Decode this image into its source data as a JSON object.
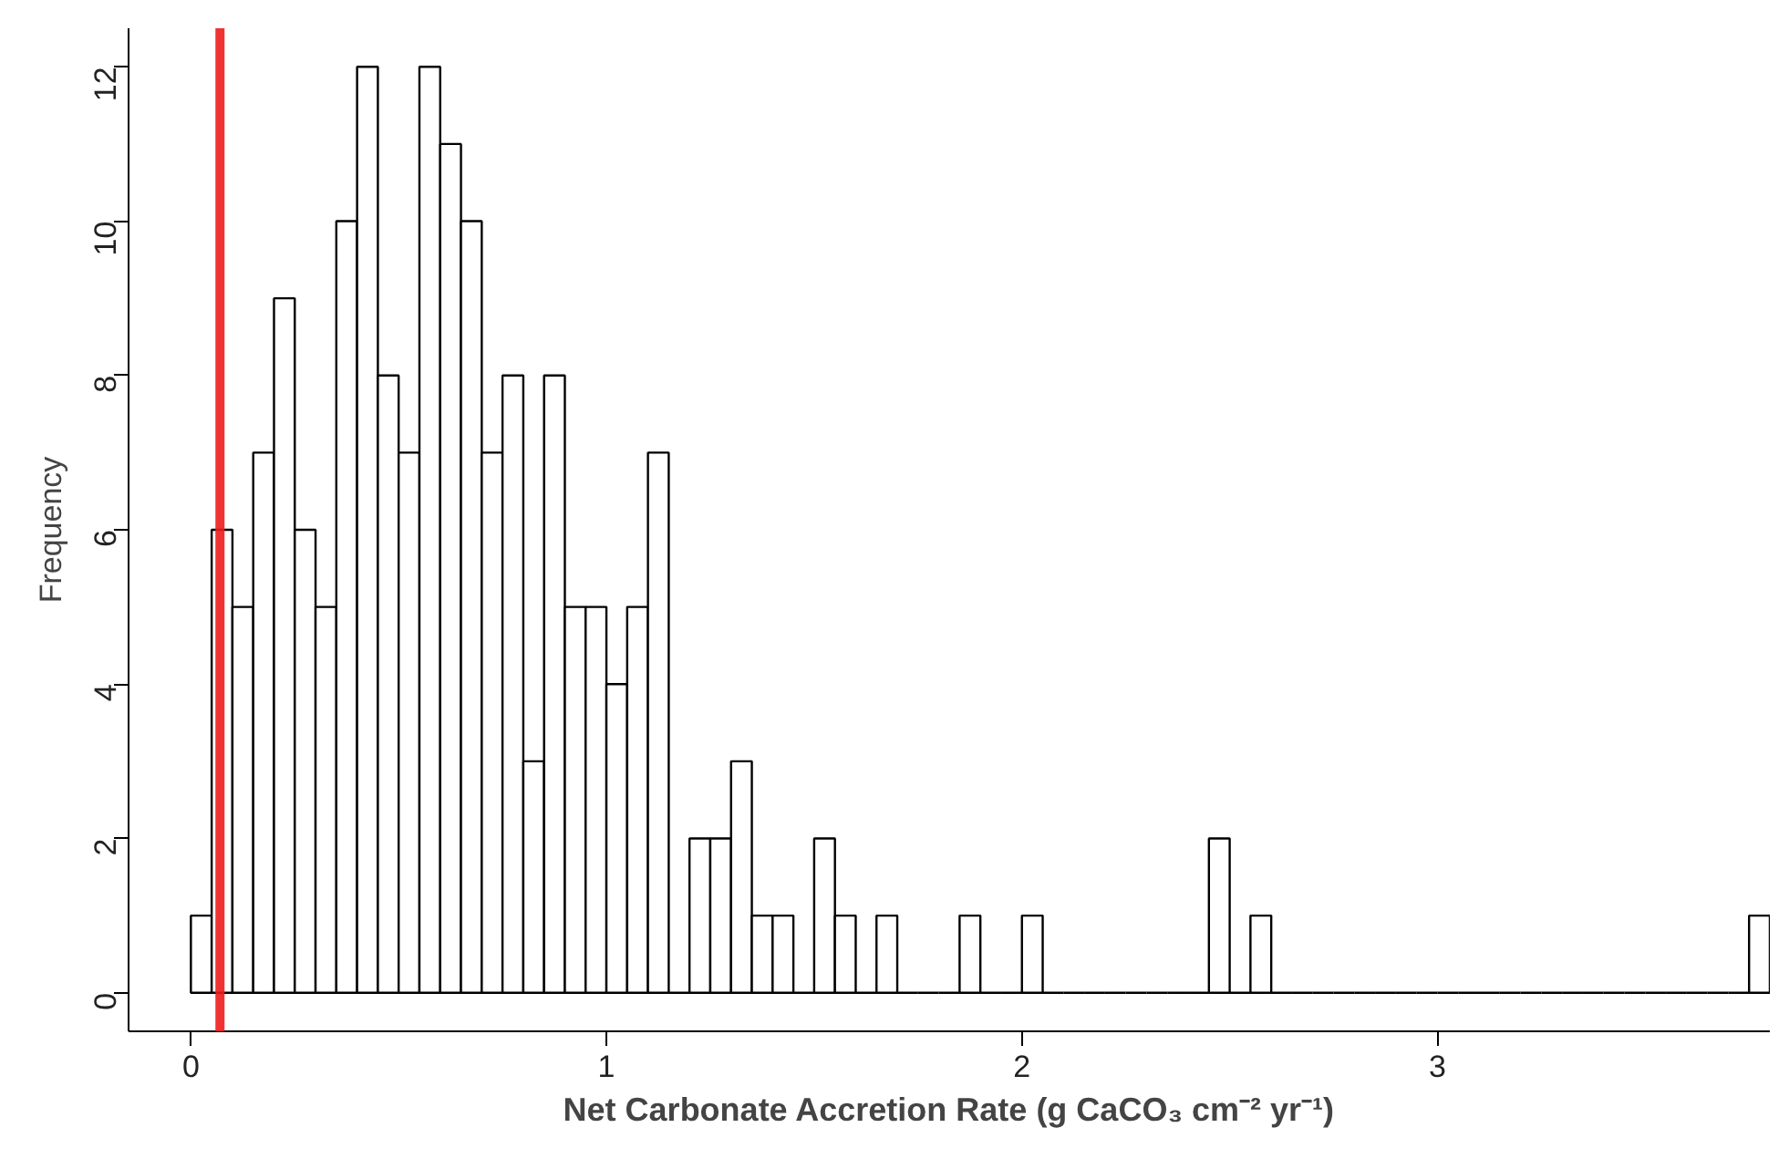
{
  "chart_data": {
    "type": "histogram",
    "xlabel": "Net Carbonate Accretion Rate (g CaCO₃ cm⁻² yr⁻¹)",
    "ylabel": "Frequency",
    "bins": [
      0,
      0.05,
      0.1,
      0.15,
      0.2,
      0.25,
      0.3,
      0.35,
      0.4,
      0.45,
      0.5,
      0.55,
      0.6,
      0.65,
      0.7,
      0.75,
      0.8,
      0.85,
      0.9,
      0.95,
      1,
      1.05,
      1.1,
      1.15,
      1.2,
      1.25,
      1.3,
      1.35,
      1.4,
      1.45,
      1.5,
      1.55,
      1.6,
      1.65,
      1.7,
      1.75,
      1.8,
      1.85,
      1.9,
      1.95,
      2,
      2.05,
      2.1,
      2.15,
      2.2,
      2.25,
      2.3,
      2.35,
      2.4,
      2.45,
      2.5,
      2.55,
      2.6,
      2.65,
      2.7,
      2.75,
      2.8,
      2.85,
      2.9,
      2.95,
      3,
      3.05,
      3.1,
      3.15,
      3.2,
      3.25,
      3.3,
      3.35,
      3.4,
      3.45,
      3.5,
      3.55,
      3.6,
      3.65,
      3.7,
      3.75,
      3.8
    ],
    "values": [
      1,
      6,
      5,
      7,
      9,
      6,
      5,
      10,
      12,
      8,
      7,
      12,
      11,
      10,
      7,
      8,
      3,
      8,
      5,
      5,
      4,
      5,
      7,
      0,
      2,
      2,
      3,
      1,
      1,
      0,
      2,
      1,
      0,
      1,
      0,
      0,
      0,
      1,
      0,
      0,
      1,
      0,
      0,
      0,
      0,
      0,
      0,
      0,
      0,
      2,
      0,
      1,
      0,
      0,
      0,
      0,
      0,
      0,
      0,
      0,
      0,
      0,
      0,
      0,
      0,
      0,
      0,
      0,
      0,
      0,
      0,
      0,
      0,
      0,
      0,
      1
    ],
    "color": "#000000",
    "xlim": [
      -0.15,
      3.8
    ],
    "xticks": [
      0,
      1,
      2,
      3
    ],
    "ylim": [
      -0.5,
      12.5
    ],
    "yticks": [
      0,
      2,
      4,
      6,
      8,
      10,
      12
    ],
    "grid": false,
    "ref_lines": [
      {
        "axis": "x",
        "value": 0.07,
        "color": "#ee1c1c"
      }
    ]
  }
}
